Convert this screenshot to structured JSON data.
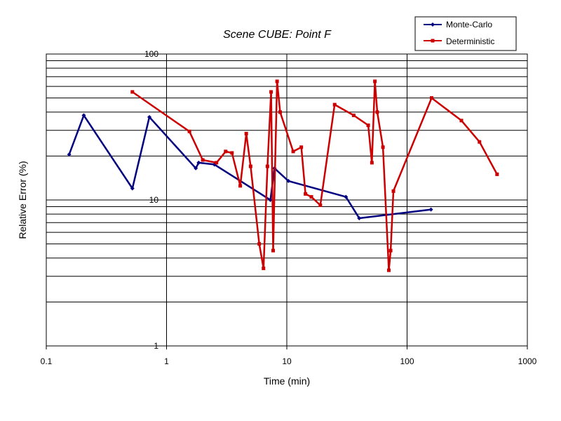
{
  "chart_data": {
    "type": "line",
    "title": "Scene CUBE:  Point F",
    "xlabel": "Time (min)",
    "ylabel": "Relative Error (%)",
    "x_scale": "log",
    "y_scale": "log",
    "xlim": [
      0.1,
      1000
    ],
    "ylim": [
      1,
      100
    ],
    "x_ticks": [
      0.1,
      1,
      10,
      100,
      1000
    ],
    "x_tick_labels": [
      "0.1",
      "1",
      "10",
      "100",
      "1000"
    ],
    "y_ticks": [
      1,
      10,
      100
    ],
    "y_tick_labels": [
      "1",
      "10",
      "100"
    ],
    "grid": {
      "x_major": true,
      "y_major": true,
      "y_minor": true
    },
    "legend_position": "top-right",
    "series": [
      {
        "name": "Monte-Carlo",
        "color": "#000080",
        "marker": "diamond",
        "points": [
          [
            0.155,
            20.5
          ],
          [
            0.205,
            38.0
          ],
          [
            0.52,
            12.0
          ],
          [
            0.72,
            37.0
          ],
          [
            1.75,
            16.5
          ],
          [
            1.85,
            18.0
          ],
          [
            2.5,
            17.5
          ],
          [
            7.3,
            10.0
          ],
          [
            7.9,
            16.5
          ],
          [
            10.3,
            13.5
          ],
          [
            31.0,
            10.5
          ],
          [
            40.0,
            7.5
          ],
          [
            158.0,
            8.6
          ]
        ]
      },
      {
        "name": "Deterministic",
        "color": "#cc0000",
        "marker": "square",
        "points": [
          [
            0.52,
            55.0
          ],
          [
            1.55,
            29.5
          ],
          [
            2.0,
            18.8
          ],
          [
            2.6,
            18.0
          ],
          [
            3.1,
            21.5
          ],
          [
            3.5,
            21.0
          ],
          [
            4.1,
            12.5
          ],
          [
            4.6,
            28.5
          ],
          [
            5.0,
            17.0
          ],
          [
            5.9,
            5.0
          ],
          [
            6.4,
            3.4
          ],
          [
            6.9,
            17.0
          ],
          [
            7.4,
            55.0
          ],
          [
            7.7,
            4.5
          ],
          [
            8.3,
            65.0
          ],
          [
            8.8,
            40.0
          ],
          [
            11.3,
            21.5
          ],
          [
            13.2,
            23.0
          ],
          [
            14.3,
            11.0
          ],
          [
            16.0,
            10.5
          ],
          [
            19.0,
            9.2
          ],
          [
            25.0,
            45.0
          ],
          [
            36.0,
            38.0
          ],
          [
            47.5,
            32.5
          ],
          [
            51.0,
            18.0
          ],
          [
            54.0,
            65.0
          ],
          [
            56.5,
            40.0
          ],
          [
            63.0,
            23.0
          ],
          [
            70.5,
            3.3
          ],
          [
            73.0,
            4.5
          ],
          [
            77.0,
            11.5
          ],
          [
            160.0,
            50.0
          ],
          [
            283.0,
            35.0
          ],
          [
            400.0,
            25.0
          ],
          [
            560.0,
            15.0
          ]
        ]
      }
    ]
  }
}
